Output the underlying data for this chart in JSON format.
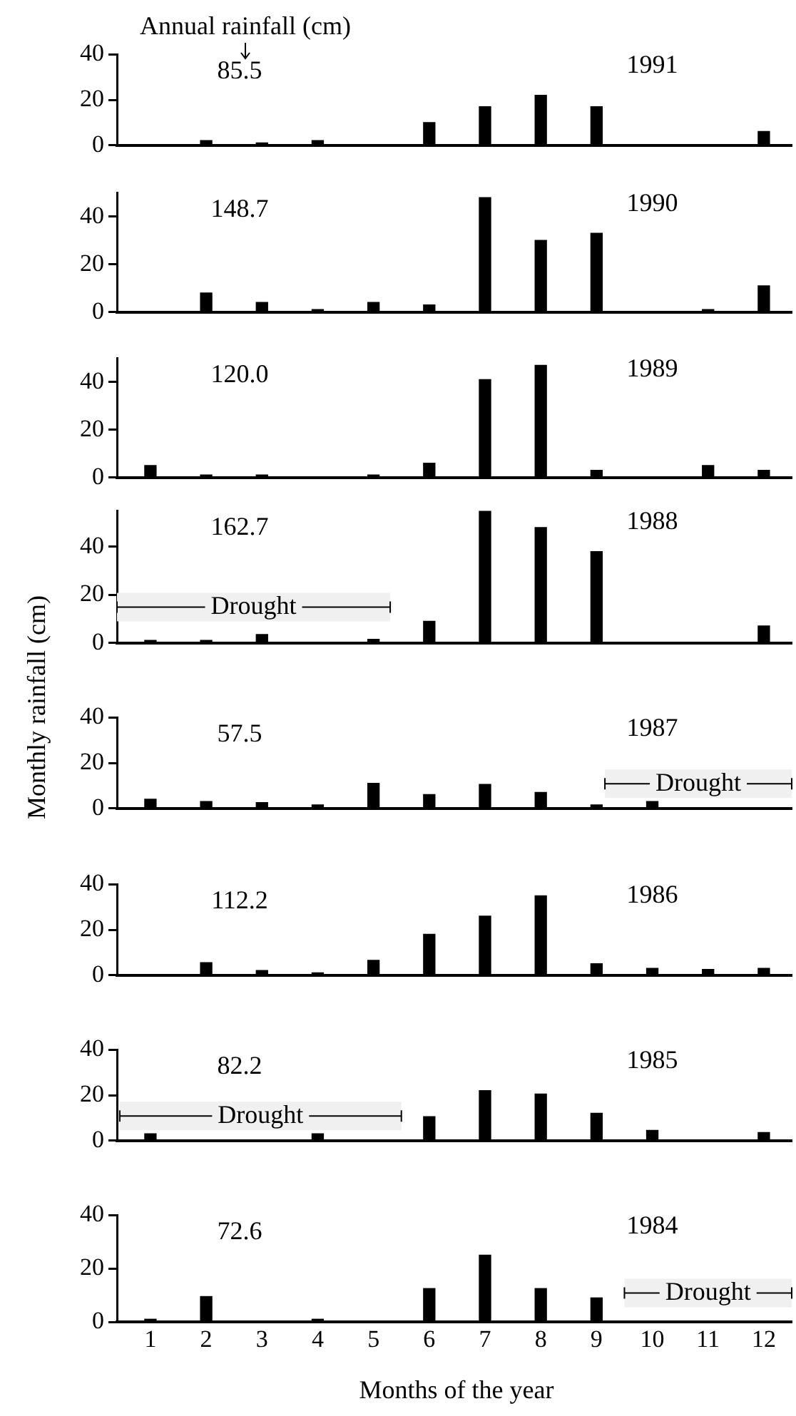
{
  "chart_data": [
    {
      "type": "bar",
      "title": "Annual rainfall (cm)",
      "x": [
        1,
        2,
        3,
        4,
        5,
        6,
        7,
        8,
        9,
        10,
        11,
        12
      ],
      "values": [
        0,
        2,
        1,
        2,
        0,
        10,
        17,
        22,
        17,
        0,
        0,
        6
      ],
      "color": "#000000",
      "xlim": [
        0.4,
        12.5
      ],
      "xticks": [
        1,
        2,
        3,
        4,
        5,
        6,
        7,
        8,
        9,
        10,
        11,
        12
      ],
      "ylim": [
        0,
        40
      ],
      "yticks": [
        0,
        20,
        40
      ],
      "annotations": [
        "85.5",
        "1991"
      ],
      "grid": false,
      "tick_labels": "y"
    },
    {
      "type": "bar",
      "x": [
        1,
        2,
        3,
        4,
        5,
        6,
        7,
        8,
        9,
        10,
        11,
        12
      ],
      "values": [
        0,
        8,
        4,
        1,
        4,
        3,
        48,
        30,
        33,
        0,
        1,
        11
      ],
      "color": "#000000",
      "xlim": [
        0.4,
        12.5
      ],
      "xticks": [
        1,
        2,
        3,
        4,
        5,
        6,
        7,
        8,
        9,
        10,
        11,
        12
      ],
      "ylim": [
        0,
        50
      ],
      "yticks": [
        0,
        20,
        40
      ],
      "annotations": [
        "148.7",
        "1990"
      ],
      "grid": false,
      "tick_labels": "y"
    },
    {
      "type": "bar",
      "x": [
        1,
        2,
        3,
        4,
        5,
        6,
        7,
        8,
        9,
        10,
        11,
        12
      ],
      "values": [
        5,
        1,
        1,
        0,
        1,
        6,
        41,
        47,
        3,
        0,
        5,
        3
      ],
      "color": "#000000",
      "xlim": [
        0.4,
        12.5
      ],
      "xticks": [
        1,
        2,
        3,
        4,
        5,
        6,
        7,
        8,
        9,
        10,
        11,
        12
      ],
      "ylim": [
        0,
        50
      ],
      "yticks": [
        0,
        20,
        40
      ],
      "annotations": [
        "120.0",
        "1989"
      ],
      "grid": false,
      "tick_labels": "y"
    },
    {
      "type": "bar",
      "ylabel": "Monthly rainfall (cm)",
      "x": [
        1,
        2,
        3,
        4,
        5,
        6,
        7,
        8,
        9,
        10,
        11,
        12
      ],
      "values": [
        1,
        1,
        3.5,
        0,
        1.5,
        9,
        55,
        48,
        38,
        0,
        0,
        7
      ],
      "color": "#000000",
      "xlim": [
        0.4,
        12.5
      ],
      "xticks": [
        1,
        2,
        3,
        4,
        5,
        6,
        7,
        8,
        9,
        10,
        11,
        12
      ],
      "ylim": [
        0,
        55
      ],
      "yticks": [
        0,
        20,
        40
      ],
      "annotations": [
        "162.7",
        "1988"
      ],
      "bands": [
        {
          "axis": "x",
          "from": 0.4,
          "to": 5.3,
          "label": "Drought",
          "color": "#f0f0f0"
        }
      ],
      "grid": false,
      "tick_labels": "y"
    },
    {
      "type": "bar",
      "x": [
        1,
        2,
        3,
        4,
        5,
        6,
        7,
        8,
        9,
        10,
        11,
        12
      ],
      "values": [
        4,
        3,
        2.5,
        1.5,
        11,
        6,
        10.5,
        7,
        1.5,
        3,
        0,
        0
      ],
      "color": "#000000",
      "xlim": [
        0.4,
        12.5
      ],
      "xticks": [
        1,
        2,
        3,
        4,
        5,
        6,
        7,
        8,
        9,
        10,
        11,
        12
      ],
      "ylim": [
        0,
        40
      ],
      "yticks": [
        0,
        20,
        40
      ],
      "annotations": [
        "57.5",
        "1987"
      ],
      "bands": [
        {
          "axis": "x",
          "from": 9.15,
          "to": 12.5,
          "label": "Drought",
          "color": "#f0f0f0"
        }
      ],
      "grid": false,
      "tick_labels": "y"
    },
    {
      "type": "bar",
      "x": [
        1,
        2,
        3,
        4,
        5,
        6,
        7,
        8,
        9,
        10,
        11,
        12
      ],
      "values": [
        0,
        5.5,
        2,
        1,
        6.5,
        18,
        26,
        35,
        5,
        3,
        2.5,
        3
      ],
      "color": "#000000",
      "xlim": [
        0.4,
        12.5
      ],
      "xticks": [
        1,
        2,
        3,
        4,
        5,
        6,
        7,
        8,
        9,
        10,
        11,
        12
      ],
      "ylim": [
        0,
        40
      ],
      "yticks": [
        0,
        20,
        40
      ],
      "annotations": [
        "112.2",
        "1986"
      ],
      "grid": false,
      "tick_labels": "y"
    },
    {
      "type": "bar",
      "x": [
        1,
        2,
        3,
        4,
        5,
        6,
        7,
        8,
        9,
        10,
        11,
        12
      ],
      "values": [
        3,
        0,
        0,
        3,
        0,
        10.5,
        22,
        20.5,
        12,
        4.5,
        0,
        3.5
      ],
      "color": "#000000",
      "xlim": [
        0.4,
        12.5
      ],
      "xticks": [
        1,
        2,
        3,
        4,
        5,
        6,
        7,
        8,
        9,
        10,
        11,
        12
      ],
      "ylim": [
        0,
        40
      ],
      "yticks": [
        0,
        20,
        40
      ],
      "annotations": [
        "82.2",
        "1985"
      ],
      "bands": [
        {
          "axis": "x",
          "from": 0.45,
          "to": 5.5,
          "label": "Drought",
          "color": "#f0f0f0"
        }
      ],
      "grid": false,
      "tick_labels": "y"
    },
    {
      "type": "bar",
      "xlabel": "Months of the year",
      "x": [
        1,
        2,
        3,
        4,
        5,
        6,
        7,
        8,
        9,
        10,
        11,
        12
      ],
      "values": [
        1,
        9.5,
        0,
        1,
        0,
        12.5,
        25,
        12.5,
        9,
        0,
        0,
        0
      ],
      "color": "#000000",
      "xlim": [
        0.4,
        12.5
      ],
      "xticks": [
        1,
        2,
        3,
        4,
        5,
        6,
        7,
        8,
        9,
        10,
        11,
        12
      ],
      "ylim": [
        0,
        40
      ],
      "yticks": [
        0,
        20,
        40
      ],
      "annotations": [
        "72.6",
        "1984"
      ],
      "bands": [
        {
          "axis": "x",
          "from": 9.5,
          "to": 12.5,
          "label": "Drought",
          "color": "#f0f0f0"
        }
      ],
      "grid": false
    }
  ]
}
